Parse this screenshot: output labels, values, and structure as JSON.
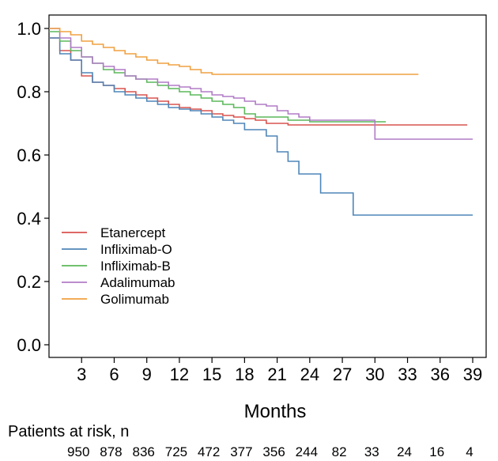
{
  "chart_data": {
    "type": "line",
    "title": "",
    "xlabel": "Months",
    "ylabel": "",
    "xlim": [
      0,
      40
    ],
    "ylim": [
      0,
      1.02
    ],
    "x_ticks": [
      3,
      6,
      9,
      12,
      15,
      18,
      21,
      24,
      27,
      30,
      33,
      36,
      39
    ],
    "x_tick_labels": [
      "3",
      "6",
      "9",
      "12",
      "15",
      "18",
      "21",
      "24",
      "27",
      "30",
      "33",
      "36",
      "39"
    ],
    "y_ticks": [
      0,
      0.2,
      0.4,
      0.6,
      0.8,
      1.0
    ],
    "y_tick_labels": [
      "0.0",
      "0.2",
      "0.4",
      "0.6",
      "0.8",
      "1.0"
    ],
    "grid": false,
    "legend_position": "bottom-left",
    "series": [
      {
        "name": "Etanercept",
        "color": "#d9534f",
        "x": [
          0,
          1,
          2,
          3,
          4,
          5,
          6,
          7,
          8,
          9,
          10,
          11,
          12,
          13,
          14,
          15,
          16,
          17,
          18,
          19,
          20,
          22,
          24,
          26,
          28,
          30,
          32,
          34,
          36,
          38.5
        ],
        "y": [
          0.97,
          0.93,
          0.9,
          0.85,
          0.83,
          0.82,
          0.81,
          0.8,
          0.79,
          0.78,
          0.77,
          0.76,
          0.75,
          0.745,
          0.74,
          0.73,
          0.725,
          0.72,
          0.715,
          0.71,
          0.7,
          0.695,
          0.695,
          0.695,
          0.695,
          0.695,
          0.695,
          0.695,
          0.695,
          0.695
        ]
      },
      {
        "name": "Infliximab-O",
        "color": "#4f86b8",
        "x": [
          0,
          1,
          2,
          3,
          4,
          5,
          6,
          7,
          8,
          9,
          10,
          11,
          12,
          13,
          14,
          15,
          16,
          17,
          18,
          19,
          20,
          21,
          22,
          23,
          24,
          25,
          26,
          27,
          28,
          29,
          39
        ],
        "y": [
          0.97,
          0.92,
          0.9,
          0.86,
          0.83,
          0.82,
          0.8,
          0.79,
          0.78,
          0.77,
          0.76,
          0.75,
          0.745,
          0.74,
          0.73,
          0.72,
          0.71,
          0.7,
          0.68,
          0.68,
          0.66,
          0.61,
          0.58,
          0.54,
          0.54,
          0.48,
          0.48,
          0.48,
          0.41,
          0.41,
          0.41
        ]
      },
      {
        "name": "Infliximab-B",
        "color": "#5cb85c",
        "x": [
          0,
          1,
          2,
          3,
          4,
          5,
          6,
          7,
          8,
          9,
          10,
          11,
          12,
          13,
          14,
          15,
          16,
          17,
          18,
          19,
          20,
          21,
          22,
          23,
          24,
          26,
          28,
          31
        ],
        "y": [
          0.99,
          0.96,
          0.93,
          0.91,
          0.89,
          0.87,
          0.86,
          0.85,
          0.84,
          0.83,
          0.82,
          0.81,
          0.8,
          0.79,
          0.78,
          0.77,
          0.76,
          0.75,
          0.73,
          0.72,
          0.72,
          0.72,
          0.71,
          0.71,
          0.705,
          0.705,
          0.705,
          0.705
        ]
      },
      {
        "name": "Adalimumab",
        "color": "#b07cc6",
        "x": [
          0,
          1,
          2,
          3,
          4,
          5,
          6,
          7,
          8,
          9,
          10,
          11,
          12,
          13,
          14,
          15,
          16,
          17,
          18,
          19,
          20,
          21,
          22,
          23,
          24,
          26,
          28,
          30,
          39
        ],
        "y": [
          1.0,
          0.97,
          0.94,
          0.91,
          0.89,
          0.88,
          0.87,
          0.85,
          0.84,
          0.84,
          0.83,
          0.82,
          0.815,
          0.81,
          0.8,
          0.79,
          0.785,
          0.78,
          0.77,
          0.76,
          0.755,
          0.74,
          0.73,
          0.72,
          0.71,
          0.71,
          0.71,
          0.65,
          0.65
        ]
      },
      {
        "name": "Golimumab",
        "color": "#f0a040",
        "x": [
          0,
          1,
          2,
          3,
          4,
          5,
          6,
          7,
          8,
          9,
          10,
          11,
          12,
          13,
          14,
          15,
          16,
          18,
          20,
          22,
          24,
          26,
          28,
          30,
          32,
          34
        ],
        "y": [
          1.0,
          0.99,
          0.98,
          0.96,
          0.95,
          0.94,
          0.93,
          0.92,
          0.91,
          0.9,
          0.89,
          0.885,
          0.88,
          0.87,
          0.86,
          0.855,
          0.855,
          0.855,
          0.855,
          0.855,
          0.855,
          0.855,
          0.855,
          0.855,
          0.855,
          0.855
        ]
      }
    ],
    "risk_table": {
      "title": "Patients at risk, n",
      "x": [
        3,
        6,
        9,
        12,
        15,
        18,
        21,
        24,
        27,
        30,
        33,
        36,
        39
      ],
      "values": [
        "950",
        "878",
        "836",
        "725",
        "472",
        "377",
        "356",
        "244",
        "82",
        "33",
        "24",
        "16",
        "4"
      ]
    }
  }
}
